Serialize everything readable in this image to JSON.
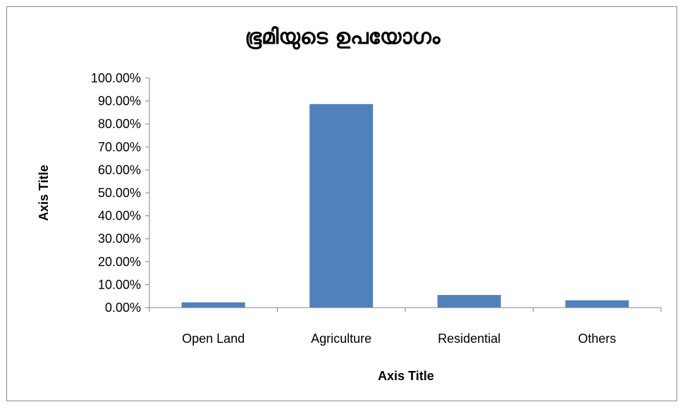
{
  "chart_data": {
    "type": "bar",
    "title": "ഭൂമിയുടെ  ഉപയോഗം",
    "xlabel": "Axis Title",
    "ylabel": "Axis Title",
    "categories": [
      "Open Land",
      "Agriculture",
      "Residential",
      "Others"
    ],
    "values": [
      0.023,
      0.887,
      0.055,
      0.032
    ],
    "ylim": [
      0,
      1
    ],
    "ytick_values": [
      0,
      0.1,
      0.2,
      0.3,
      0.4,
      0.5,
      0.6,
      0.7,
      0.8,
      0.9,
      1.0
    ],
    "ytick_labels": [
      "0.00%",
      "10.00%",
      "20.00%",
      "30.00%",
      "40.00%",
      "50.00%",
      "60.00%",
      "70.00%",
      "80.00%",
      "90.00%",
      "100.00%"
    ],
    "bar_color": "#4f81bd",
    "axis_color": "#868686",
    "legend": "none",
    "grid": false
  }
}
